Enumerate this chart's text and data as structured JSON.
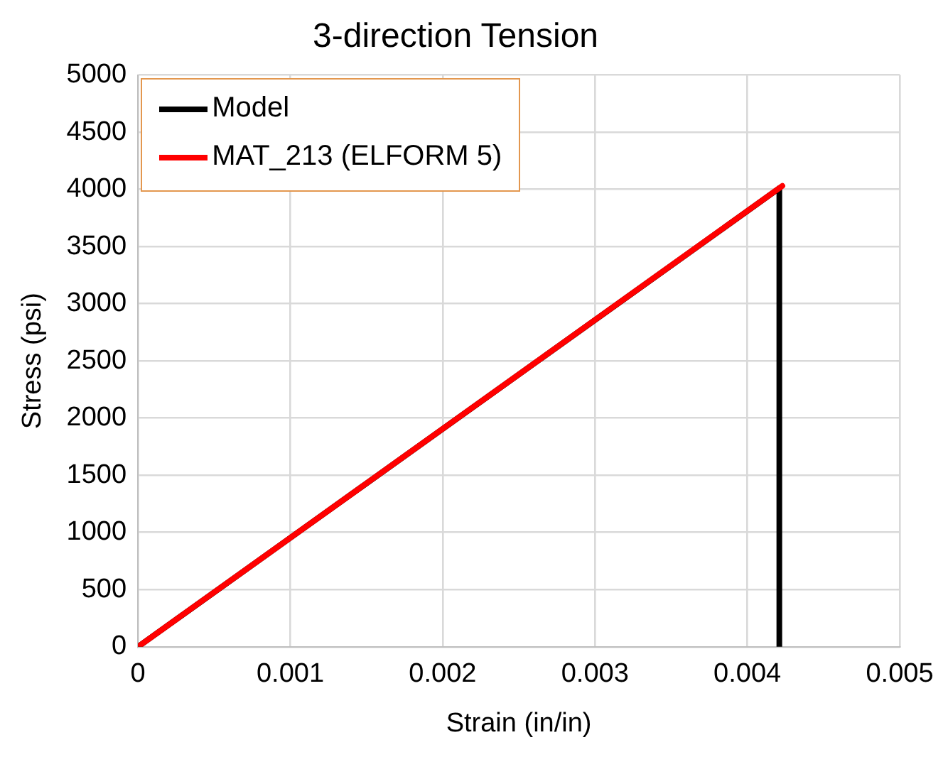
{
  "chart_data": {
    "type": "line",
    "title": "3-direction Tension",
    "xlabel": "Strain (in/in)",
    "ylabel": "Stress (psi)",
    "series": [
      {
        "name": "Model",
        "color": "#000000",
        "x": [
          0,
          0.00421,
          0.00421
        ],
        "values": [
          0,
          4010,
          0
        ]
      },
      {
        "name": "MAT_213 (ELFORM 5)",
        "color": "#ff0000",
        "x": [
          0,
          0.00423
        ],
        "values": [
          0,
          4030
        ]
      }
    ],
    "xlim": [
      0,
      0.005
    ],
    "xticks": [
      0,
      0.001,
      0.002,
      0.003,
      0.004,
      0.005
    ],
    "ylim": [
      0,
      5000
    ],
    "yticks": [
      0,
      500,
      1000,
      1500,
      2000,
      2500,
      3000,
      3500,
      4000,
      4500,
      5000
    ],
    "grid": true,
    "legend": "top left",
    "marker": "none",
    "line_style": "solid"
  }
}
